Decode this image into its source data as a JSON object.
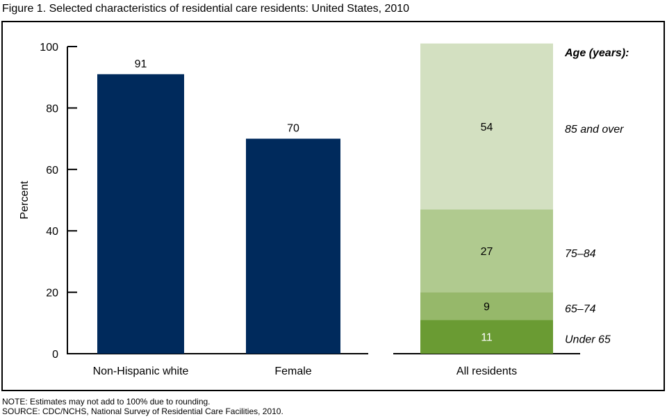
{
  "figure": {
    "title": "Figure 1. Selected characteristics of residential care residents: United States, 2010",
    "note": "NOTE: Estimates may not add to 100% due to rounding.",
    "source": "SOURCE: CDC/NCHS, National Survey of Residential Care Facilities, 2010."
  },
  "chart_data": [
    {
      "type": "bar",
      "title": "",
      "xlabel": "",
      "ylabel": "Percent",
      "ylim": [
        0,
        100
      ],
      "yticks": [
        0,
        20,
        40,
        60,
        80,
        100
      ],
      "grid": false,
      "categories": [
        "Non-Hispanic white",
        "Female"
      ],
      "values": [
        91,
        70
      ],
      "data_labels": [
        "91",
        "70"
      ],
      "color": "#002a5c"
    },
    {
      "type": "bar",
      "stacked": true,
      "categories": [
        "All residents"
      ],
      "ylim": [
        0,
        100
      ],
      "legend_title": "Age (years):",
      "legend_placement": "right",
      "series": [
        {
          "name": "Under 65",
          "values": [
            11
          ],
          "color": "#6a9b33",
          "label_color": "#ffffff"
        },
        {
          "name": "65–74",
          "values": [
            9
          ],
          "color": "#96b86a",
          "label_color": "#000000"
        },
        {
          "name": "75–84",
          "values": [
            27
          ],
          "color": "#b0ca8f",
          "label_color": "#000000"
        },
        {
          "name": "85 and over",
          "values": [
            54
          ],
          "color": "#d3e0c1",
          "label_color": "#000000"
        }
      ]
    }
  ]
}
